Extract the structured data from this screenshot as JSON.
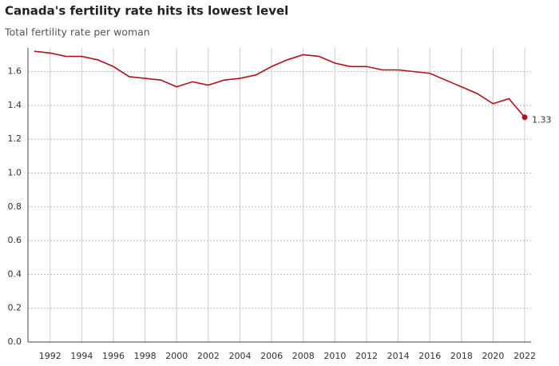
{
  "chart_data": {
    "type": "line",
    "title": "Canada's fertility rate hits its lowest level",
    "subtitle": "Total fertility rate per woman",
    "x": [
      1991,
      1992,
      1993,
      1994,
      1995,
      1996,
      1997,
      1998,
      1999,
      2000,
      2001,
      2002,
      2003,
      2004,
      2005,
      2006,
      2007,
      2008,
      2009,
      2010,
      2011,
      2012,
      2013,
      2014,
      2015,
      2016,
      2017,
      2018,
      2019,
      2020,
      2021,
      2022
    ],
    "values": [
      1.72,
      1.71,
      1.69,
      1.69,
      1.67,
      1.63,
      1.57,
      1.56,
      1.55,
      1.51,
      1.54,
      1.52,
      1.55,
      1.56,
      1.58,
      1.63,
      1.67,
      1.7,
      1.69,
      1.65,
      1.63,
      1.63,
      1.61,
      1.61,
      1.6,
      1.59,
      1.55,
      1.51,
      1.47,
      1.41,
      1.44,
      1.33
    ],
    "color": "#b0121b",
    "xlim": [
      1990.6,
      2022.4
    ],
    "xticks": [
      1992,
      1994,
      1996,
      1998,
      2000,
      2002,
      2004,
      2006,
      2008,
      2010,
      2012,
      2014,
      2016,
      2018,
      2020,
      2022
    ],
    "ylim": [
      0,
      1.74
    ],
    "yticks": [
      {
        "value": 0,
        "label": "0.0"
      },
      0.2,
      0.4,
      0.6,
      0.8,
      {
        "value": 1,
        "label": "1.0"
      },
      1.2,
      1.4,
      1.6
    ],
    "grid": true
  }
}
